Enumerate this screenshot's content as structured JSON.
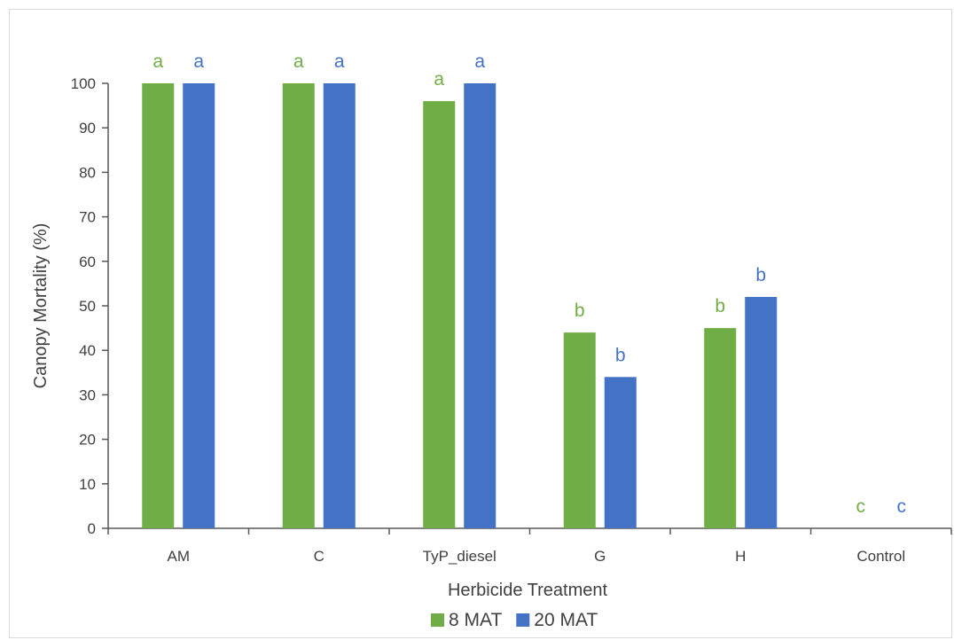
{
  "chart_data": {
    "type": "bar",
    "title": "",
    "xlabel": "Herbicide Treatment",
    "ylabel": "Canopy Mortality (%)",
    "categories": [
      "AM",
      "C",
      "TyP_diesel",
      "G",
      "H",
      "Control"
    ],
    "series": [
      {
        "name": "8 MAT",
        "color": "#70AD47",
        "values": [
          100,
          100,
          96,
          44,
          45,
          0
        ],
        "letters": [
          "a",
          "a",
          "a",
          "b",
          "b",
          "c"
        ]
      },
      {
        "name": "20 MAT",
        "color": "#4472C4",
        "values": [
          100,
          100,
          100,
          34,
          52,
          0
        ],
        "letters": [
          "a",
          "a",
          "a",
          "b",
          "b",
          "c"
        ]
      }
    ],
    "ylim": [
      0,
      100
    ],
    "yticks": [
      0,
      10,
      20,
      30,
      40,
      50,
      60,
      70,
      80,
      90,
      100
    ],
    "grid": false,
    "legend": "bottom"
  }
}
